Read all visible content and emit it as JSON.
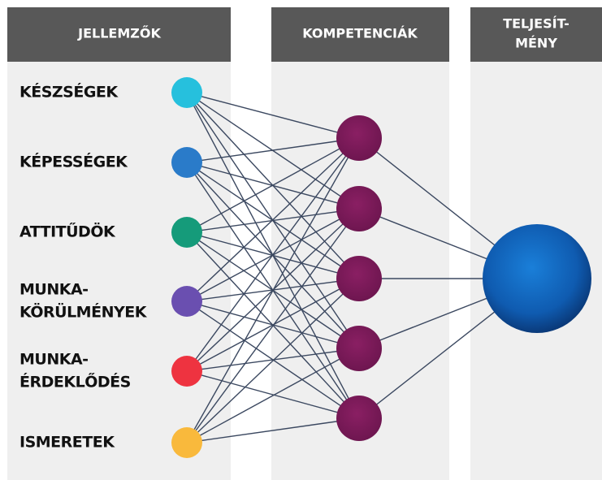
{
  "headers": [
    [
      "JELLEMZŐK"
    ],
    [
      "KOMPETENCIÁK"
    ],
    [
      "TELJESÍT-",
      "MÉNY"
    ]
  ],
  "labels": [
    [
      "KÉSZSÉGEK"
    ],
    [
      "KÉPESSÉGEK"
    ],
    [
      "ATTITŰDÖK"
    ],
    [
      "MUNKA-",
      "KÖRÜLMÉNYEK"
    ],
    [
      "MUNKA-",
      "ÉRDEKLŐDÉS"
    ],
    [
      "ISMERETEK"
    ]
  ]
}
